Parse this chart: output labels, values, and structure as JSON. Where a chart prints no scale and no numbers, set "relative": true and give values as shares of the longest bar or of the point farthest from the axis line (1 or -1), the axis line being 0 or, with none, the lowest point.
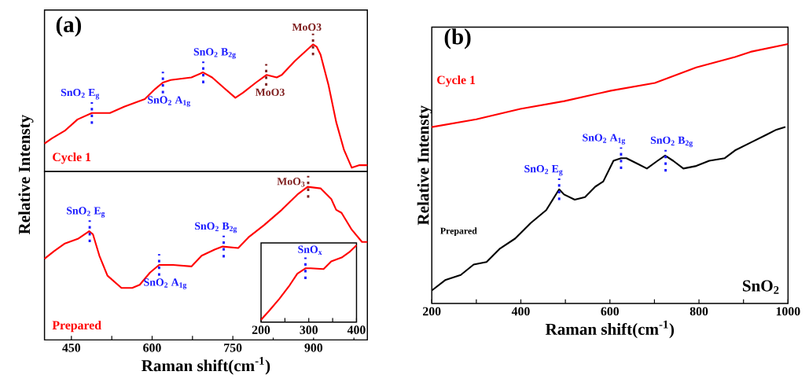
{
  "chart_data": [
    {
      "type": "line",
      "relative": true,
      "xlim": [
        400,
        1000
      ],
      "tick_labels": false,
      "ylabel": "Relative Intensty",
      "series": [
        {
          "name": "Cycle 1",
          "color": "#ff0000",
          "x": [
            400,
            413.5,
            437.5,
            461.5,
            488,
            521.6,
            548,
            586.5,
            605.8,
            620,
            634.6,
            673,
            694.6,
            711.5,
            735.5,
            754.7,
            769,
            793,
            812.4,
            831.6,
            841,
            865.4,
            899,
            906,
            913,
            927.8,
            942,
            956.6,
            971,
            985.5,
            1000
          ],
          "values": [
            0.22,
            0.26,
            0.32,
            0.41,
            0.46,
            0.46,
            0.51,
            0.57,
            0.65,
            0.7,
            0.72,
            0.74,
            0.78,
            0.74,
            0.65,
            0.58,
            0.62,
            0.7,
            0.76,
            0.74,
            0.76,
            0.87,
            1.0,
            0.98,
            0.92,
            0.68,
            0.39,
            0.17,
            0.03,
            0.05,
            0.05
          ]
        }
      ],
      "annotations": [
        "(a)",
        {
          "text": "SnO$_{2}$ E$_{g}$",
          "x": 488,
          "y": 0.46
        },
        {
          "text": "SnO$_{2}$ A$_{1g}$",
          "x": 620,
          "y": 0.7
        },
        {
          "text": "SnO$_{2}$ B$_{2g}$",
          "x": 695,
          "y": 0.78
        },
        {
          "text": "MoO3",
          "x": 812,
          "y": 0.76
        },
        {
          "text": "MoO3",
          "x": 899,
          "y": 1.0
        }
      ]
    },
    {
      "type": "line",
      "relative": true,
      "xlim": [
        400,
        1000
      ],
      "tick_labels": "x",
      "xlabel": "Raman shift(cm$^{-1}$)",
      "xticks": [
        450,
        {
          "value": 525,
          "label": null
        },
        600,
        {
          "value": 675,
          "label": null
        },
        750,
        {
          "value": 825,
          "label": null
        },
        900,
        {
          "value": 975,
          "label": null
        }
      ],
      "series": [
        {
          "name": "Prepared",
          "color": "#ff0000",
          "x": [
            400,
            418,
            438,
            462,
            483,
            490,
            502,
            517,
            543,
            563,
            577,
            596,
            613,
            639,
            673,
            692,
            716,
            731,
            760,
            779,
            808,
            841,
            870,
            889,
            913,
            933,
            942,
            952,
            971,
            990,
            1000
          ],
          "values": [
            0.53,
            0.58,
            0.63,
            0.66,
            0.71,
            0.69,
            0.55,
            0.42,
            0.34,
            0.34,
            0.36,
            0.44,
            0.49,
            0.49,
            0.48,
            0.55,
            0.59,
            0.61,
            0.6,
            0.67,
            0.75,
            0.85,
            0.95,
            1.0,
            0.99,
            0.92,
            0.85,
            0.83,
            0.72,
            0.64,
            0.64
          ]
        }
      ],
      "annotations": [
        {
          "text": "SnO$_{2}$ E$_{g}$",
          "x": 484,
          "y": 0.71
        },
        {
          "text": "SnO$_{2}$ A$_{1g}$",
          "x": 613,
          "y": 0.49
        },
        {
          "text": "SnO$_{2}$ B$_{2g}$",
          "x": 733,
          "y": 0.61
        },
        {
          "text": "MoO$_{3}$",
          "x": 890,
          "y": 1.0
        }
      ]
    },
    {
      "type": "line",
      "relative": true,
      "xlim": [
        200,
        400
      ],
      "tick_labels": "x",
      "xticks": [
        200,
        {
          "value": 250,
          "label": null
        },
        300,
        {
          "value": 350,
          "label": null
        },
        400
      ],
      "series": [
        {
          "color": "#ff0000",
          "x": [
            200,
            216,
            238,
            260,
            276,
            293,
            304,
            331,
            347,
            369,
            385,
            400
          ],
          "values": [
            0.03,
            0.14,
            0.3,
            0.48,
            0.63,
            0.7,
            0.7,
            0.69,
            0.79,
            0.84,
            0.91,
            1.0
          ]
        }
      ],
      "annotations": [
        {
          "text": "SnO$_{x}$",
          "x": 293,
          "y": 0.7
        }
      ]
    },
    {
      "type": "line",
      "relative": true,
      "xlim": [
        200,
        1000
      ],
      "tick_labels": "x",
      "xlabel": "Raman shift(cm$^{-1}$)",
      "ylabel": "Relative Intensty",
      "xticks": [
        200,
        {
          "value": 300,
          "label": null
        },
        400,
        {
          "value": 500,
          "label": null
        },
        600,
        {
          "value": 700,
          "label": null
        },
        800,
        {
          "value": 900,
          "label": null
        },
        1000
      ],
      "series": [
        {
          "name": "Cycle 1",
          "color": "#ff0000",
          "x": [
            200,
            300,
            399,
            497.5,
            602,
            701,
            794,
            881,
            916,
            1000
          ],
          "values": [
            0.68,
            0.71,
            0.75,
            0.78,
            0.82,
            0.85,
            0.91,
            0.95,
            0.97,
            1.0
          ]
        },
        {
          "name": "Prepared",
          "color": "#000000",
          "x": [
            200,
            230,
            265,
            294,
            323,
            352,
            387,
            422,
            457,
            486,
            497,
            521,
            544,
            567,
            585,
            608,
            625,
            637,
            660,
            683,
            707,
            724,
            742,
            765,
            794,
            823,
            858,
            881,
            916,
            951,
            974,
            994
          ],
          "values": [
            0.05,
            0.09,
            0.11,
            0.15,
            0.16,
            0.21,
            0.25,
            0.31,
            0.36,
            0.44,
            0.42,
            0.4,
            0.41,
            0.45,
            0.47,
            0.55,
            0.56,
            0.56,
            0.54,
            0.52,
            0.55,
            0.57,
            0.55,
            0.52,
            0.53,
            0.55,
            0.56,
            0.59,
            0.62,
            0.65,
            0.67,
            0.68
          ]
        }
      ],
      "annotations": [
        "(b)",
        "SnO$_{2}$",
        {
          "text": "SnO$_{2}$ E$_{g}$",
          "x": 486,
          "y": 0.44
        },
        {
          "text": "SnO$_{2}$ A$_{1g}$",
          "x": 625,
          "y": 0.56
        },
        {
          "text": "SnO$_{2}$ B$_{2g}$",
          "x": 725,
          "y": 0.55
        }
      ]
    }
  ]
}
